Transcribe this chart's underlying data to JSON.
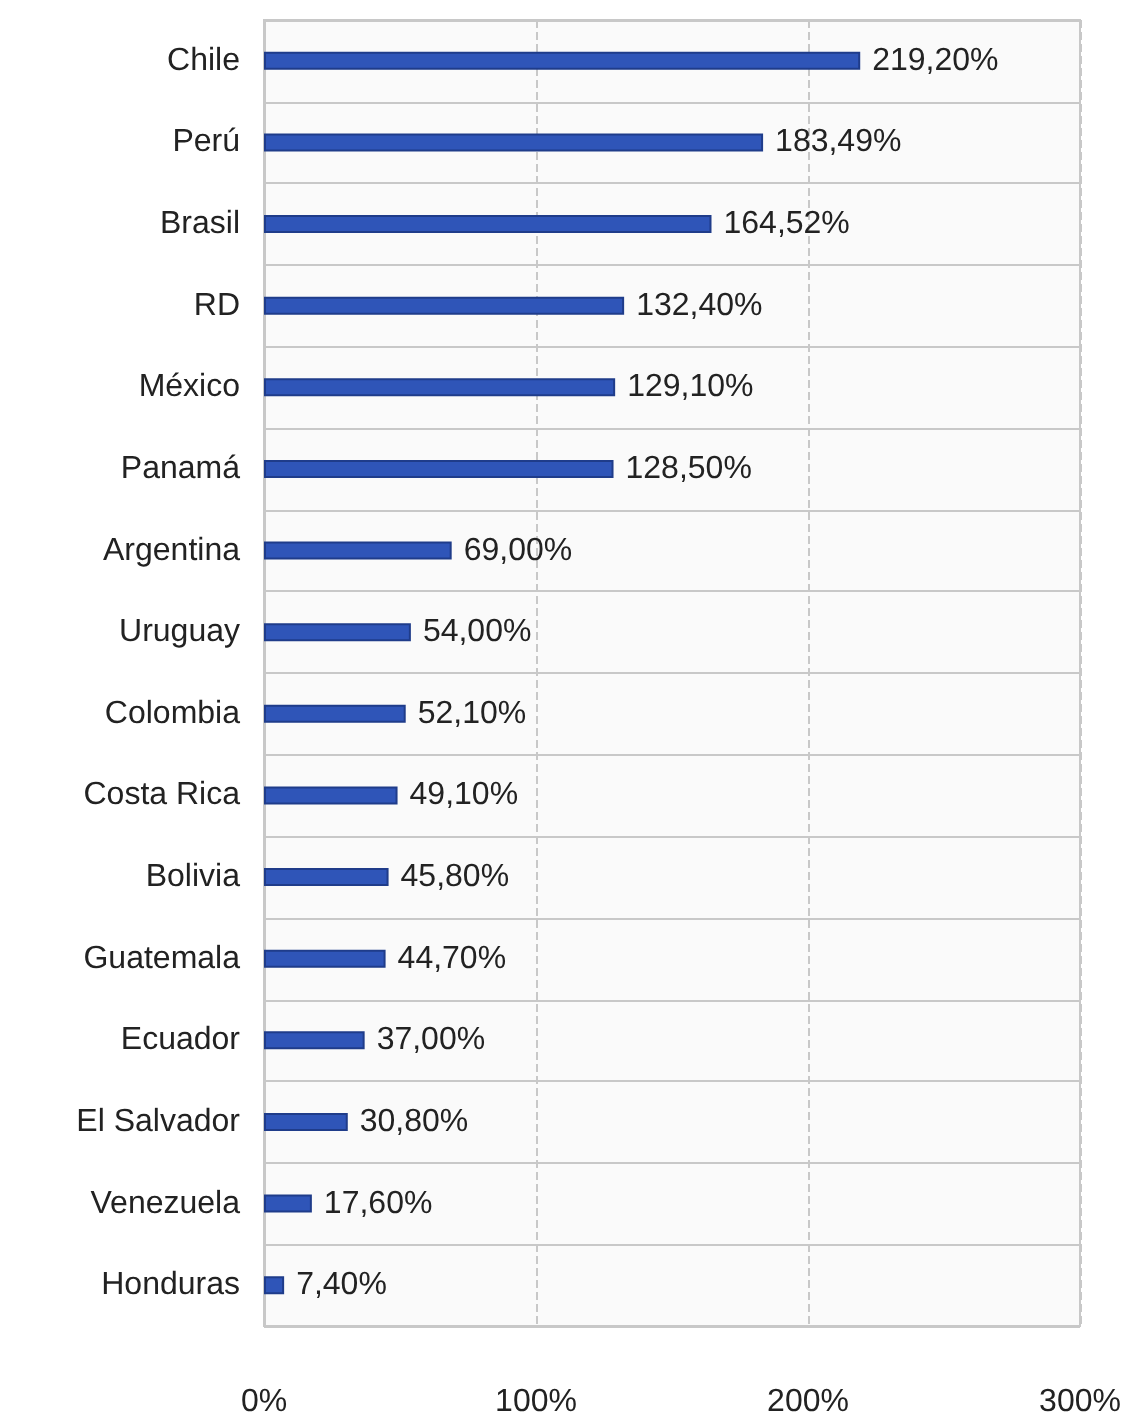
{
  "chart_data": {
    "type": "bar",
    "orientation": "horizontal",
    "categories": [
      "Chile",
      "Perú",
      "Brasil",
      "RD",
      "México",
      "Panamá",
      "Argentina",
      "Uruguay",
      "Colombia",
      "Costa Rica",
      "Bolivia",
      "Guatemala",
      "Ecuador",
      "El Salvador",
      "Venezuela",
      "Honduras"
    ],
    "values": [
      219.2,
      183.49,
      164.52,
      132.4,
      129.1,
      128.5,
      69,
      54,
      52.1,
      49.1,
      45.8,
      44.7,
      37,
      30.8,
      17.6,
      7.4
    ],
    "value_labels": [
      "219,20%",
      "183,49%",
      "164,52%",
      "132,40%",
      "129,10%",
      "128,50%",
      "69,00%",
      "54,00%",
      "52,10%",
      "49,10%",
      "45,80%",
      "44,70%",
      "37,00%",
      "30,80%",
      "17,60%",
      "7,40%"
    ],
    "color": "#2f55b8",
    "xlim": [
      0,
      300
    ],
    "xticks": [
      {
        "value": 0,
        "label": "0%"
      },
      {
        "value": 100,
        "label": "100%"
      },
      {
        "value": 200,
        "label": "200%"
      },
      {
        "value": 300,
        "label": "300%"
      }
    ],
    "grid": true
  }
}
